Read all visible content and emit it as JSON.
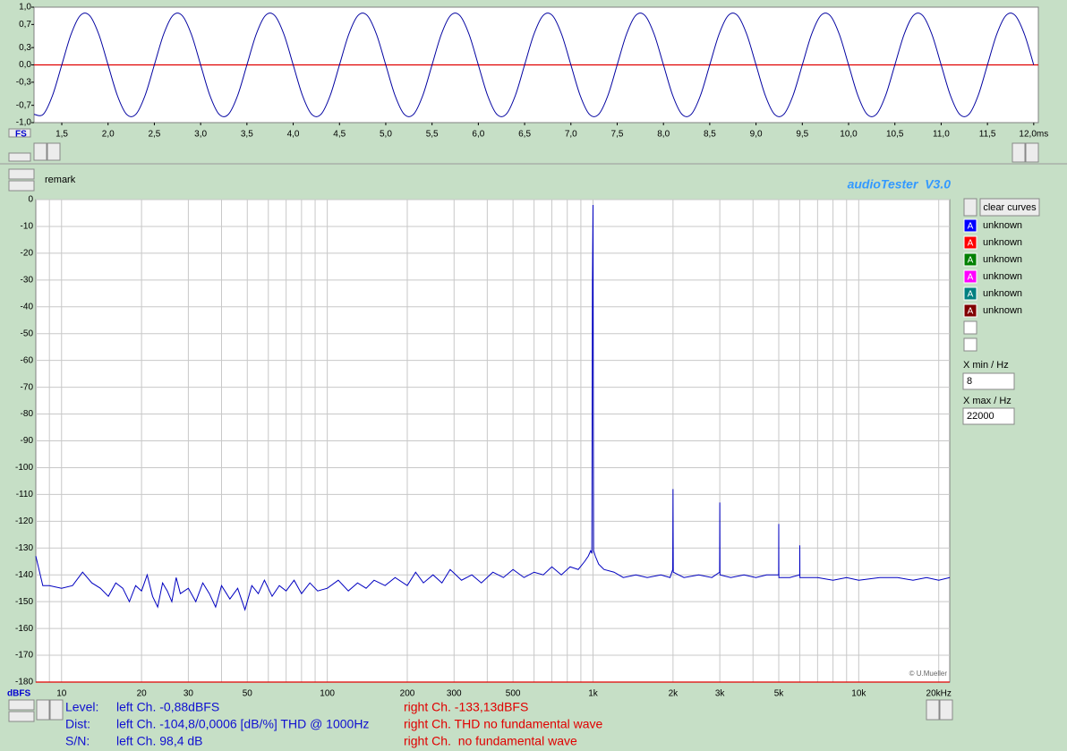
{
  "chart_data": [
    {
      "type": "line",
      "xlabel": "FS",
      "x": [
        1.2,
        1.3,
        1.4,
        1.5,
        1.6,
        1.7,
        1.8,
        1.9,
        2.0,
        2.1,
        2.2,
        2.3,
        2.4,
        2.5,
        2.6,
        2.7,
        2.8,
        2.9,
        3.0,
        3.1,
        3.2,
        3.3,
        3.4,
        3.5,
        3.6,
        3.7,
        3.8,
        3.9,
        4.0,
        4.1,
        4.2,
        4.3,
        4.4,
        4.5,
        4.6,
        4.7,
        4.8,
        4.9,
        5.0,
        5.1,
        5.2,
        5.3,
        5.4,
        5.5,
        5.6,
        5.7,
        5.8,
        5.9,
        6.0,
        6.1,
        6.2,
        6.3,
        6.4,
        6.5,
        6.6,
        6.7,
        6.8,
        6.9,
        7.0,
        7.1,
        7.2,
        7.3,
        7.4,
        7.5,
        7.6,
        7.7,
        7.8,
        7.9,
        8.0,
        8.1,
        8.2,
        8.3,
        8.4,
        8.5,
        8.6,
        8.7,
        8.8,
        8.9,
        9.0,
        9.1,
        9.2,
        9.3,
        9.4,
        9.5,
        9.6,
        9.7,
        9.8,
        9.9,
        10.0,
        10.1,
        10.2,
        10.3,
        10.4,
        10.5,
        10.6,
        10.7,
        10.8,
        10.9,
        11.0,
        11.1,
        11.2,
        11.3,
        11.4,
        11.5,
        11.6,
        11.7,
        11.8,
        11.9,
        12.0
      ],
      "series": [
        {
          "color": "#0000a0",
          "values": [
            -0.856,
            -0.856,
            -0.529,
            0,
            0.529,
            0.856,
            0.856,
            0.529,
            0,
            -0.529,
            -0.856,
            -0.856,
            -0.529,
            0,
            0.529,
            0.856,
            0.856,
            0.529,
            0,
            -0.529,
            -0.856,
            -0.856,
            -0.529,
            0,
            0.529,
            0.856,
            0.856,
            0.529,
            0,
            -0.529,
            -0.856,
            -0.856,
            -0.529,
            0,
            0.529,
            0.856,
            0.856,
            0.529,
            0,
            -0.529,
            -0.856,
            -0.856,
            -0.529,
            0,
            0.529,
            0.856,
            0.856,
            0.529,
            0,
            -0.529,
            -0.856,
            -0.856,
            -0.529,
            0,
            0.529,
            0.856,
            0.856,
            0.529,
            0,
            -0.529,
            -0.856,
            -0.856,
            -0.529,
            0,
            0.529,
            0.856,
            0.856,
            0.529,
            0,
            -0.529,
            -0.856,
            -0.856,
            -0.529,
            0,
            0.529,
            0.856,
            0.856,
            0.529,
            0,
            -0.529,
            -0.856,
            -0.856,
            -0.529,
            0,
            0.529,
            0.856,
            0.856,
            0.529,
            0,
            -0.529,
            -0.856,
            -0.856,
            -0.529,
            0,
            0.529,
            0.856,
            0.856,
            0.529,
            0,
            -0.529,
            -0.856,
            -0.856,
            -0.529,
            0,
            0.529,
            0.856,
            0.856,
            0.529,
            0
          ]
        }
      ],
      "xlim": [
        1.2,
        12.05
      ],
      "ylim": [
        -1,
        1
      ],
      "yticks": [
        {
          "value": 1,
          "label": "1,0"
        },
        {
          "value": 0.7,
          "label": "0,7"
        },
        {
          "value": 0.3,
          "label": "0,3"
        },
        {
          "value": 0,
          "label": "0,0"
        },
        {
          "value": -0.3,
          "label": "-0,3"
        },
        {
          "value": -0.7,
          "label": "-0,7"
        },
        {
          "value": -1,
          "label": "-1,0"
        }
      ],
      "xticks": [
        {
          "value": 1.5,
          "label": "1,5"
        },
        {
          "value": 2,
          "label": "2,0"
        },
        {
          "value": 2.5,
          "label": "2,5"
        },
        {
          "value": 3,
          "label": "3,0"
        },
        {
          "value": 3.5,
          "label": "3,5"
        },
        {
          "value": 4,
          "label": "4,0"
        },
        {
          "value": 4.5,
          "label": "4,5"
        },
        {
          "value": 5,
          "label": "5,0"
        },
        {
          "value": 5.5,
          "label": "5,5"
        },
        {
          "value": 6,
          "label": "6,0"
        },
        {
          "value": 6.5,
          "label": "6,5"
        },
        {
          "value": 7,
          "label": "7,0"
        },
        {
          "value": 7.5,
          "label": "7,5"
        },
        {
          "value": 8,
          "label": "8,0"
        },
        {
          "value": 8.5,
          "label": "8,5"
        },
        {
          "value": 9,
          "label": "9,0"
        },
        {
          "value": 9.5,
          "label": "9,5"
        },
        {
          "value": 10,
          "label": "10,0"
        },
        {
          "value": 10.5,
          "label": "10,5"
        },
        {
          "value": 11,
          "label": "11,0"
        },
        {
          "value": 11.5,
          "label": "11,5"
        },
        {
          "value": 12,
          "label": "12,0ms"
        }
      ],
      "grid": false,
      "log_x": false,
      "smooth": true
    },
    {
      "type": "line",
      "ylabel": "dBFS",
      "annotation": "© U.Mueller",
      "x": [
        8,
        8.5,
        9,
        10,
        11,
        12,
        13,
        14,
        15,
        16,
        17,
        18,
        19,
        20,
        21,
        22,
        23,
        24,
        25,
        26,
        27,
        28,
        30,
        32,
        34,
        36,
        38,
        40,
        43,
        46,
        49,
        52,
        55,
        58,
        62,
        66,
        70,
        75,
        80,
        86,
        92,
        100,
        110,
        120,
        130,
        140,
        150,
        165,
        180,
        200,
        215,
        230,
        250,
        270,
        290,
        320,
        350,
        380,
        420,
        460,
        500,
        550,
        600,
        650,
        700,
        760,
        820,
        880,
        930,
        960,
        980,
        990,
        995,
        1000,
        1005,
        1020,
        1050,
        1100,
        1200,
        1300,
        1450,
        1600,
        1800,
        1950,
        1995,
        2000,
        2005,
        2200,
        2500,
        2800,
        2995,
        3000,
        3005,
        3300,
        3700,
        4100,
        4500,
        4995,
        5000,
        5005,
        5500,
        5995,
        6000,
        6005,
        7000,
        8000,
        9000,
        10000,
        12000,
        14000,
        16000,
        18000,
        20000,
        22000
      ],
      "series": [
        {
          "color": "#0000c0",
          "values": [
            -133,
            -144,
            -144,
            -145,
            -144,
            -139,
            -143,
            -145,
            -148,
            -143,
            -145,
            -150,
            -144,
            -146,
            -140,
            -148,
            -152,
            -143,
            -146,
            -150,
            -141,
            -147,
            -145,
            -150,
            -143,
            -147,
            -152,
            -144,
            -149,
            -145,
            -153,
            -144,
            -147,
            -142,
            -148,
            -144,
            -146,
            -142,
            -147,
            -143,
            -146,
            -145,
            -142,
            -146,
            -143,
            -145,
            -142,
            -144,
            -141,
            -144,
            -139,
            -143,
            -140,
            -143,
            -138,
            -142,
            -140,
            -143,
            -139,
            -141,
            -138,
            -141,
            -139,
            -140,
            -137,
            -140,
            -137,
            -138,
            -135,
            -133,
            -131,
            -132,
            -31,
            -2,
            -131,
            -133,
            -136,
            -138,
            -139,
            -141,
            -140,
            -141,
            -140,
            -141,
            -138,
            -108,
            -139,
            -141,
            -140,
            -141,
            -139,
            -113,
            -140,
            -141,
            -140,
            -141,
            -140,
            -140,
            -121,
            -141,
            -141,
            -140,
            -129,
            -141,
            -141,
            -142,
            -141,
            -142,
            -141,
            -141,
            -142,
            -141,
            -142,
            -141
          ]
        }
      ],
      "xlim": [
        8,
        22000
      ],
      "ylim": [
        -180,
        0
      ],
      "yticks": [
        0,
        -10,
        -20,
        -30,
        -40,
        -50,
        -60,
        -70,
        -80,
        -90,
        -100,
        -110,
        -120,
        -130,
        -140,
        -150,
        -160,
        -170,
        -180
      ],
      "xticks": [
        10,
        20,
        30,
        50,
        100,
        200,
        300,
        500,
        {
          "value": 1000,
          "label": "1k"
        },
        {
          "value": 2000,
          "label": "2k"
        },
        {
          "value": 3000,
          "label": "3k"
        },
        {
          "value": 5000,
          "label": "5k"
        },
        {
          "value": 10000,
          "label": "10k"
        },
        {
          "value": 20000,
          "label": "20kHz"
        }
      ],
      "grid": true,
      "log_x": true,
      "smooth": false
    }
  ],
  "header": {
    "title": "audioTester  V3.0",
    "remark": "remark"
  },
  "legend_panel": {
    "button": "clear curves",
    "marker": "A",
    "curves": [
      {
        "label": "unknown",
        "color": "#0000ff"
      },
      {
        "label": "unknown",
        "color": "#ff0000"
      },
      {
        "label": "unknown",
        "color": "#008000"
      },
      {
        "label": "unknown",
        "color": "#ff00ff"
      },
      {
        "label": "unknown",
        "color": "#008080"
      },
      {
        "label": "unknown",
        "color": "#800000"
      }
    ],
    "xmin_label": "X min / Hz",
    "xmin": "8",
    "xmax_label": "X max / Hz",
    "xmax": "22000"
  },
  "status": {
    "rows": [
      [
        "Level:",
        "left Ch. -0,88dBFS",
        "right Ch. -133,13dBFS"
      ],
      [
        "Dist:",
        "left Ch. -104,8/0,0006 [dB/%] THD @ 1000Hz",
        "right Ch. THD no fundamental wave"
      ],
      [
        "S/N:",
        "left Ch. 98,4 dB",
        "right Ch.  no fundamental wave"
      ]
    ]
  }
}
